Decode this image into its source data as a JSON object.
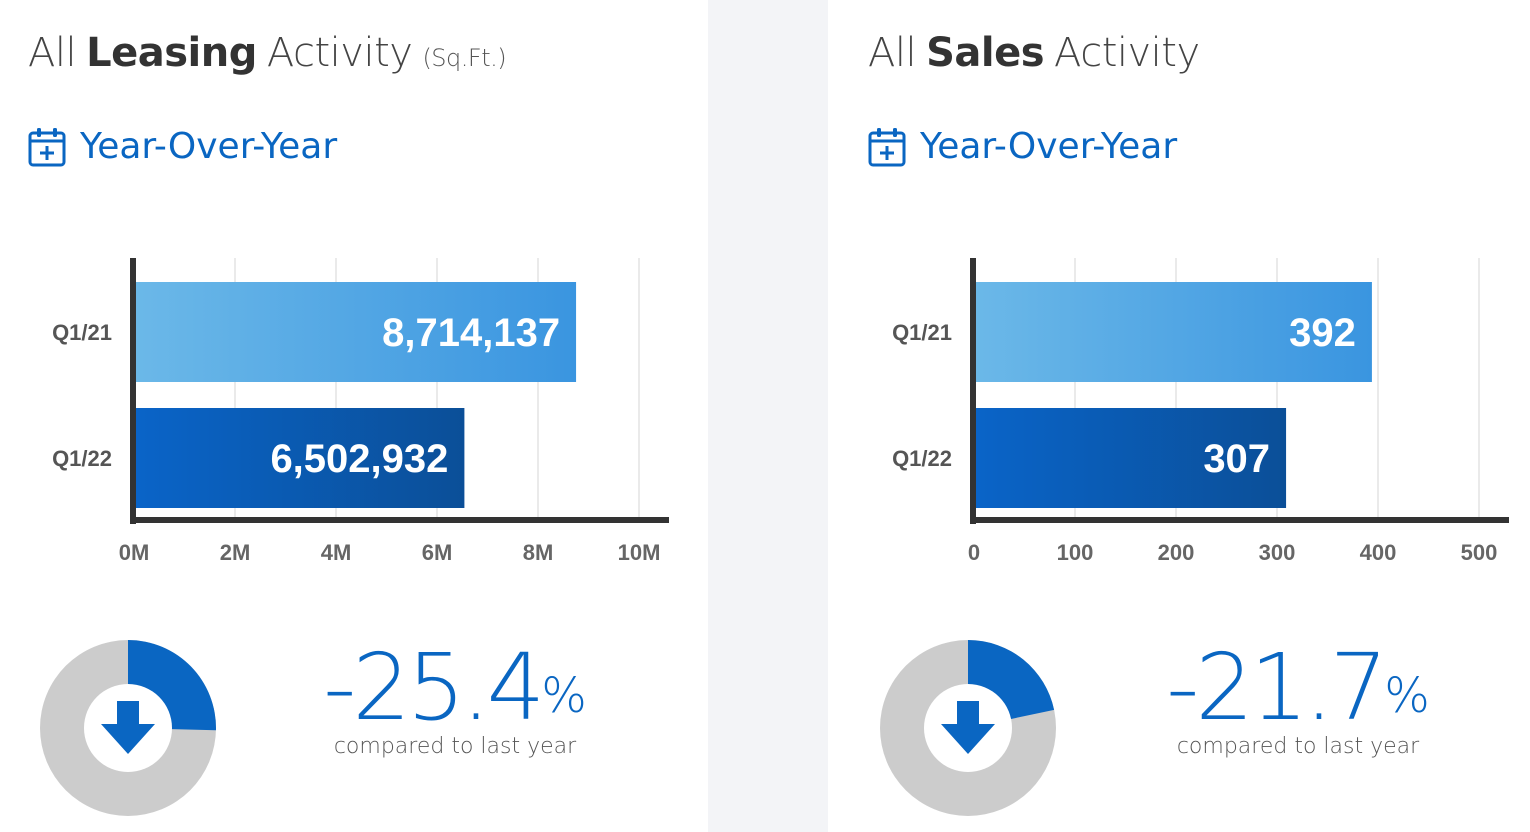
{
  "colors": {
    "accent": "#0a66c2",
    "bar_light": "#4a9fe0",
    "bar_dark": "#0a4fa0",
    "donut_gray": "#cccccc",
    "axis": "#333333"
  },
  "panels": [
    {
      "title": {
        "prefix": "All",
        "bold": "Leasing",
        "suffix": "Activity",
        "unit": "(Sq.Ft.)"
      },
      "subtitle": "Year-Over-Year",
      "change": {
        "value": "-25.4",
        "sign": "%",
        "label": "compared to last year",
        "fraction": 0.254
      }
    },
    {
      "title": {
        "prefix": "All",
        "bold": "Sales",
        "suffix": "Activity",
        "unit": ""
      },
      "subtitle": "Year-Over-Year",
      "change": {
        "value": "-21.7",
        "sign": "%",
        "label": "compared to last year",
        "fraction": 0.217
      }
    }
  ],
  "chart_data": [
    {
      "type": "bar",
      "orientation": "horizontal",
      "title": "All Leasing Activity (Sq.Ft.)",
      "categories": [
        "Q1/21",
        "Q1/22"
      ],
      "values": [
        8714137,
        6502932
      ],
      "value_labels": [
        "8,714,137",
        "6,502,932"
      ],
      "xlim": [
        0,
        10000000
      ],
      "xticks": [
        "0M",
        "2M",
        "4M",
        "6M",
        "8M",
        "10M"
      ],
      "grid": true
    },
    {
      "type": "bar",
      "orientation": "horizontal",
      "title": "All Sales Activity",
      "categories": [
        "Q1/21",
        "Q1/22"
      ],
      "values": [
        392,
        307
      ],
      "value_labels": [
        "392",
        "307"
      ],
      "xlim": [
        0,
        500
      ],
      "xticks": [
        "0",
        "100",
        "200",
        "300",
        "400",
        "500"
      ],
      "grid": true
    }
  ]
}
